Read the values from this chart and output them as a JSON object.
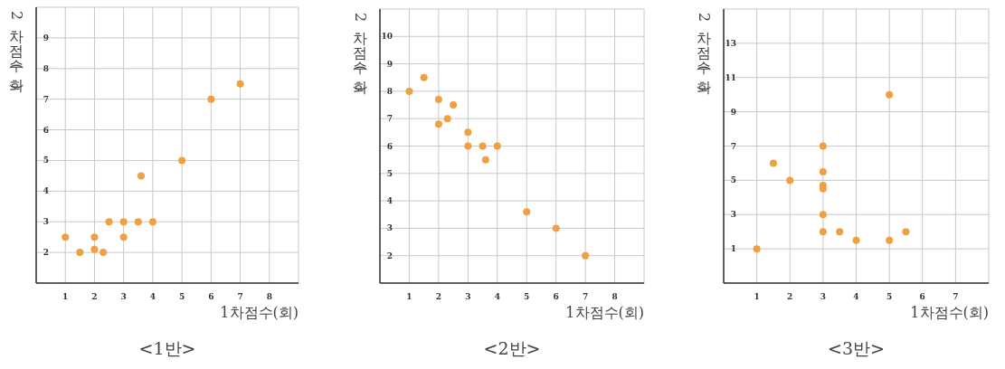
{
  "chart_data": [
    {
      "type": "scatter",
      "title": "<1반>",
      "xlabel": "1차점수(회)",
      "ylabel": "2차점수(회)",
      "xlim": [
        0,
        9
      ],
      "ylim": [
        1,
        10
      ],
      "xticks": [
        1,
        2,
        3,
        4,
        5,
        6,
        7,
        8
      ],
      "yticks": [
        2,
        3,
        4,
        5,
        6,
        7,
        8,
        9
      ],
      "grid": true,
      "marker": "circle",
      "series": [
        {
          "color": "#f0a040",
          "x": [
            1,
            1.5,
            2,
            2,
            2.3,
            2.5,
            3,
            3,
            3.5,
            3.6,
            4,
            5,
            6,
            7
          ],
          "values": [
            2.5,
            2,
            2.5,
            2.1,
            2,
            3,
            3,
            2.5,
            3,
            4.5,
            3,
            5,
            7,
            7.5
          ]
        }
      ]
    },
    {
      "type": "scatter",
      "title": "<2반>",
      "xlabel": "1차점수(회)",
      "ylabel": "2차점수(회)",
      "xlim": [
        0,
        9
      ],
      "ylim": [
        1,
        11
      ],
      "xticks": [
        1,
        2,
        3,
        4,
        5,
        6,
        7,
        8
      ],
      "yticks": [
        2,
        3,
        4,
        5,
        6,
        7,
        8,
        9,
        10
      ],
      "grid": true,
      "marker": "circle",
      "series": [
        {
          "color": "#f0a040",
          "x": [
            1,
            1.5,
            2,
            2,
            2.3,
            2.5,
            3,
            3,
            3.5,
            3.6,
            4,
            5,
            6,
            7
          ],
          "values": [
            8,
            8.5,
            7.7,
            6.8,
            7,
            7.5,
            6.5,
            6,
            6,
            5.5,
            6,
            3.6,
            3,
            2
          ]
        }
      ]
    },
    {
      "type": "scatter",
      "title": "<3반>",
      "xlabel": "1차점수(회)",
      "ylabel": "2차점수(회)",
      "xlim": [
        0,
        8
      ],
      "ylim": [
        -1,
        15
      ],
      "xticks": [
        1,
        2,
        3,
        4,
        5,
        6,
        7
      ],
      "yticks": [
        1,
        3,
        5,
        7,
        9,
        11,
        13
      ],
      "grid": true,
      "marker": "circle",
      "series": [
        {
          "color": "#f0a040",
          "x": [
            1,
            1.5,
            2,
            3,
            3,
            3,
            3,
            3,
            3,
            3.5,
            4,
            5,
            5,
            5.5
          ],
          "values": [
            1,
            6,
            5,
            7,
            5.5,
            4.7,
            4.5,
            3,
            2,
            2,
            1.5,
            10,
            1.5,
            2
          ]
        }
      ]
    }
  ]
}
